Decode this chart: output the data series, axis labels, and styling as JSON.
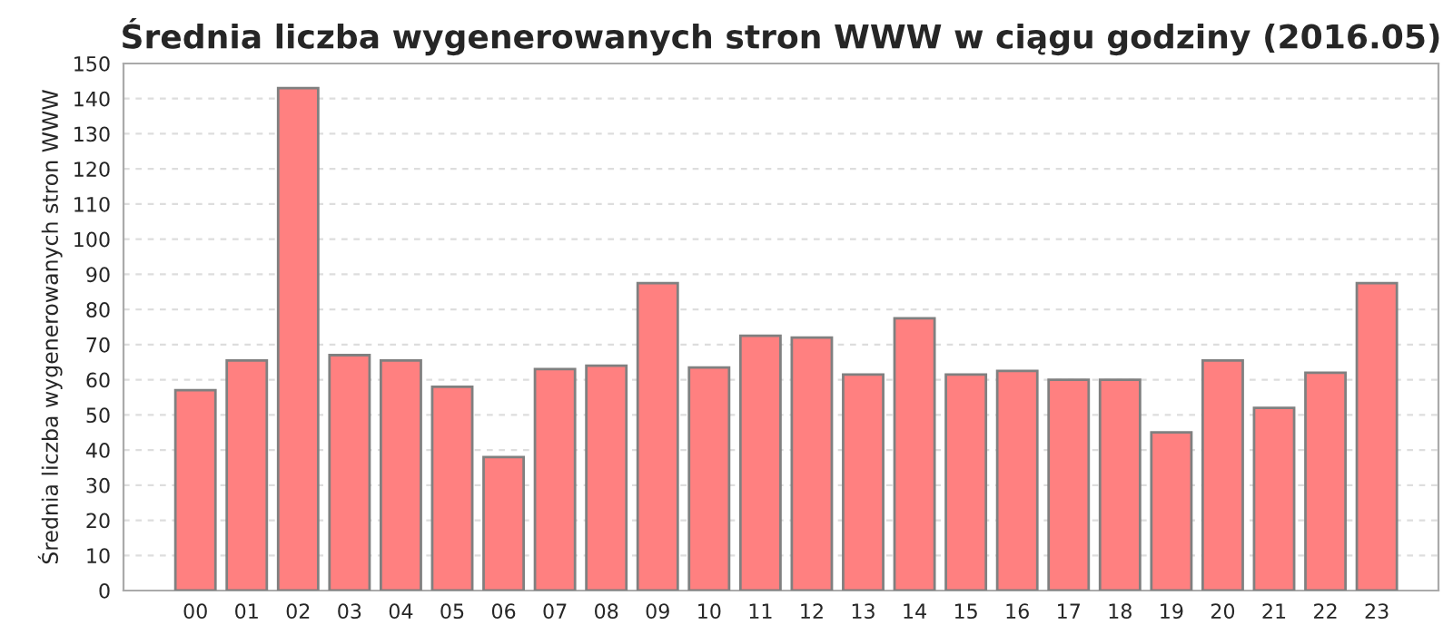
{
  "chart_data": {
    "type": "bar",
    "title": "Średnia liczba wygenerowanych stron WWW w ciągu godziny (2016.05)",
    "ylabel": "Średnia liczba wygenerowanych stron WWW",
    "categories": [
      "00",
      "01",
      "02",
      "03",
      "04",
      "05",
      "06",
      "07",
      "08",
      "09",
      "10",
      "11",
      "12",
      "13",
      "14",
      "15",
      "16",
      "17",
      "18",
      "19",
      "20",
      "21",
      "22",
      "23"
    ],
    "values": [
      57,
      65.5,
      143,
      67,
      65.5,
      58,
      38,
      63,
      64,
      87.5,
      63.5,
      72.5,
      72,
      61.5,
      77.5,
      61.5,
      62.5,
      60,
      60,
      45,
      65.5,
      52,
      62,
      87.5
    ],
    "color": "#ff8080",
    "ylim": [
      0,
      150
    ],
    "yticks": [
      0,
      10,
      20,
      30,
      40,
      50,
      60,
      70,
      80,
      90,
      100,
      110,
      120,
      130,
      140,
      150
    ],
    "grid": "y"
  }
}
